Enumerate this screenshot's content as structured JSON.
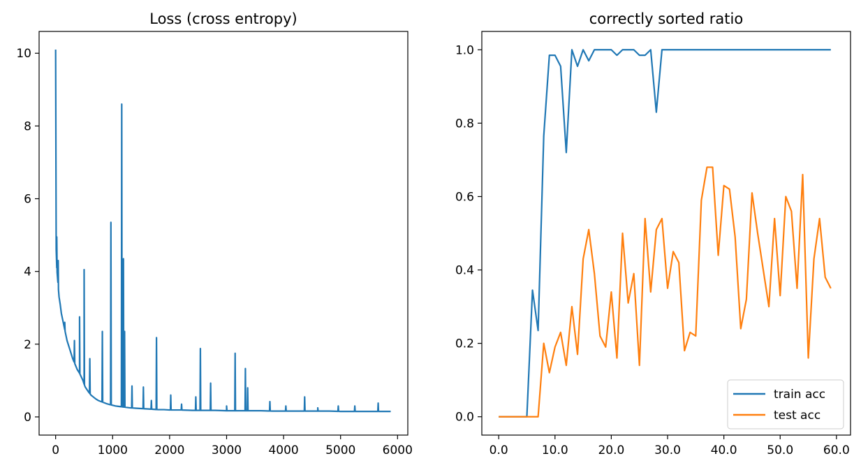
{
  "chart_data": [
    {
      "type": "line",
      "title": "Loss (cross entropy)",
      "xlabel": "",
      "ylabel": "",
      "xlim": [
        -290,
        6180
      ],
      "ylim": [
        -0.5,
        10.6
      ],
      "xticks": [
        0,
        1000,
        2000,
        3000,
        4000,
        5000,
        6000
      ],
      "yticks": [
        0,
        2,
        4,
        6,
        8,
        10
      ],
      "grid": false,
      "color": "#1f77b4",
      "series": [
        {
          "x": [
            0,
            10,
            20,
            30,
            40,
            50,
            60,
            80,
            100,
            120,
            140,
            160,
            180,
            200,
            230,
            260,
            300,
            340,
            380,
            420,
            450,
            480,
            500,
            520,
            550,
            580,
            620,
            660,
            700,
            750,
            800,
            850,
            900,
            950,
            1000,
            1050,
            1100,
            1150,
            1200,
            1250,
            1300,
            1400,
            1500,
            1600,
            1700,
            1800,
            1900,
            2000,
            2200,
            2400,
            2600,
            2800,
            3000,
            3200,
            3400,
            3600,
            3800,
            4000,
            4200,
            4400,
            4600,
            4800,
            5000,
            5200,
            5400,
            5600,
            5800,
            5880
          ],
          "y": [
            10.1,
            4.6,
            4.1,
            3.9,
            3.7,
            3.5,
            3.3,
            3.1,
            2.85,
            2.7,
            2.55,
            2.4,
            2.25,
            2.1,
            1.95,
            1.8,
            1.6,
            1.45,
            1.3,
            1.2,
            1.1,
            1.0,
            0.9,
            0.82,
            0.75,
            0.68,
            0.6,
            0.55,
            0.5,
            0.45,
            0.42,
            0.39,
            0.36,
            0.34,
            0.32,
            0.3,
            0.29,
            0.28,
            0.27,
            0.26,
            0.25,
            0.24,
            0.23,
            0.22,
            0.21,
            0.2,
            0.2,
            0.19,
            0.19,
            0.18,
            0.18,
            0.18,
            0.17,
            0.17,
            0.17,
            0.17,
            0.16,
            0.16,
            0.16,
            0.16,
            0.16,
            0.16,
            0.15,
            0.15,
            0.15,
            0.15,
            0.15,
            0.15
          ]
        }
      ],
      "spikes": [
        {
          "x": 20,
          "y": 4.95
        },
        {
          "x": 45,
          "y": 4.3
        },
        {
          "x": 160,
          "y": 2.6
        },
        {
          "x": 330,
          "y": 2.1
        },
        {
          "x": 420,
          "y": 2.75
        },
        {
          "x": 500,
          "y": 4.05
        },
        {
          "x": 600,
          "y": 1.6
        },
        {
          "x": 820,
          "y": 2.35
        },
        {
          "x": 970,
          "y": 5.35
        },
        {
          "x": 1160,
          "y": 8.6
        },
        {
          "x": 1190,
          "y": 4.35
        },
        {
          "x": 1210,
          "y": 2.35
        },
        {
          "x": 1340,
          "y": 0.85
        },
        {
          "x": 1540,
          "y": 0.82
        },
        {
          "x": 1680,
          "y": 0.45
        },
        {
          "x": 1770,
          "y": 2.18
        },
        {
          "x": 2020,
          "y": 0.6
        },
        {
          "x": 2210,
          "y": 0.35
        },
        {
          "x": 2460,
          "y": 0.55
        },
        {
          "x": 2540,
          "y": 1.88
        },
        {
          "x": 2720,
          "y": 0.93
        },
        {
          "x": 3000,
          "y": 0.3
        },
        {
          "x": 3150,
          "y": 1.75
        },
        {
          "x": 3330,
          "y": 1.33
        },
        {
          "x": 3370,
          "y": 0.8
        },
        {
          "x": 3760,
          "y": 0.42
        },
        {
          "x": 4040,
          "y": 0.3
        },
        {
          "x": 4370,
          "y": 0.55
        },
        {
          "x": 4600,
          "y": 0.25
        },
        {
          "x": 4960,
          "y": 0.3
        },
        {
          "x": 5250,
          "y": 0.3
        },
        {
          "x": 5660,
          "y": 0.38
        }
      ]
    },
    {
      "type": "line",
      "title": "correctly sorted ratio",
      "xlabel": "",
      "ylabel": "",
      "xlim": [
        -3,
        62.5
      ],
      "ylim": [
        -0.05,
        1.05
      ],
      "xticks": [
        0,
        10,
        20,
        30,
        40,
        50,
        60
      ],
      "yticks": [
        0.0,
        0.2,
        0.4,
        0.6,
        0.8,
        1.0
      ],
      "grid": false,
      "legend": "bottom-right",
      "series": [
        {
          "name": "train acc",
          "color": "#1f77b4",
          "x": [
            0,
            1,
            2,
            3,
            4,
            5,
            6,
            7,
            8,
            9,
            10,
            11,
            12,
            13,
            14,
            15,
            16,
            17,
            18,
            19,
            20,
            21,
            22,
            23,
            24,
            25,
            26,
            27,
            28,
            29,
            30,
            31,
            32,
            33,
            34,
            35,
            36,
            37,
            38,
            39,
            40,
            41,
            42,
            43,
            44,
            45,
            46,
            47,
            48,
            49,
            50,
            51,
            52,
            53,
            54,
            55,
            56,
            57,
            58,
            59
          ],
          "y": [
            0,
            0,
            0,
            0,
            0,
            0,
            0.345,
            0.235,
            0.765,
            0.985,
            0.985,
            0.955,
            0.72,
            1.0,
            0.955,
            1.0,
            0.97,
            1.0,
            1.0,
            1.0,
            1.0,
            0.985,
            1.0,
            1.0,
            1.0,
            0.985,
            0.985,
            1.0,
            0.83,
            1.0,
            1.0,
            1.0,
            1.0,
            1.0,
            1.0,
            1.0,
            1.0,
            1.0,
            1.0,
            1.0,
            1.0,
            1.0,
            1.0,
            1.0,
            1.0,
            1.0,
            1.0,
            1.0,
            1.0,
            1.0,
            1.0,
            1.0,
            1.0,
            1.0,
            1.0,
            1.0,
            1.0,
            1.0,
            1.0,
            1.0
          ]
        },
        {
          "name": "test acc",
          "color": "#ff7f0e",
          "x": [
            0,
            1,
            2,
            3,
            4,
            5,
            6,
            7,
            8,
            9,
            10,
            11,
            12,
            13,
            14,
            15,
            16,
            17,
            18,
            19,
            20,
            21,
            22,
            23,
            24,
            25,
            26,
            27,
            28,
            29,
            30,
            31,
            32,
            33,
            34,
            35,
            36,
            37,
            38,
            39,
            40,
            41,
            42,
            43,
            44,
            45,
            46,
            47,
            48,
            49,
            50,
            51,
            52,
            53,
            54,
            55,
            56,
            57,
            58,
            59
          ],
          "y": [
            0,
            0,
            0,
            0,
            0,
            0,
            0,
            0,
            0.2,
            0.12,
            0.19,
            0.23,
            0.14,
            0.3,
            0.17,
            0.43,
            0.51,
            0.39,
            0.22,
            0.19,
            0.34,
            0.16,
            0.5,
            0.31,
            0.39,
            0.14,
            0.54,
            0.34,
            0.51,
            0.54,
            0.35,
            0.45,
            0.42,
            0.18,
            0.23,
            0.22,
            0.59,
            0.68,
            0.68,
            0.44,
            0.63,
            0.62,
            0.49,
            0.24,
            0.32,
            0.61,
            0.5,
            0.4,
            0.3,
            0.54,
            0.33,
            0.6,
            0.56,
            0.35,
            0.66,
            0.16,
            0.43,
            0.54,
            0.38,
            0.35
          ]
        }
      ]
    }
  ]
}
